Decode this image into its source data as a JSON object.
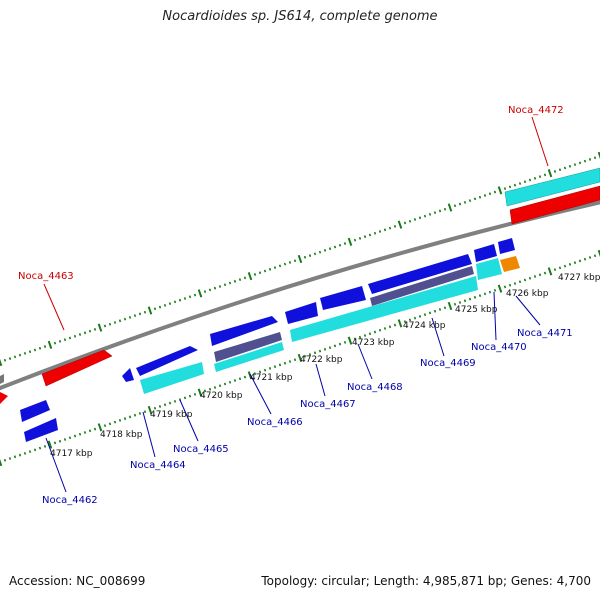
{
  "title": "Nocardioides sp. JS614, complete genome",
  "footer": {
    "accession": "Accession: NC_008699",
    "summary": "Topology: circular; Length: 4,985,871 bp; Genes: 4,700"
  },
  "colors": {
    "backbone": "#808080",
    "tick_green": "#1a7a1a",
    "gene_blue": "#1010dd",
    "gene_cyan": "#22dddd",
    "gene_red": "#ee0000",
    "gene_slate": "#505090",
    "gene_orange": "#ee8800",
    "label_red": "#cc0000",
    "label_blue": "#0000aa"
  },
  "scale_labels": [
    "4717 kbp",
    "4718 kbp",
    "4719 kbp",
    "4720 kbp",
    "4721 kbp",
    "4722 kbp",
    "4723 kbp",
    "4724 kbp",
    "4725 kbp",
    "4726 kbp",
    "4727 kbp"
  ],
  "gene_labels": [
    {
      "text": "Noca_4472",
      "color": "red"
    },
    {
      "text": "Noca_4463",
      "color": "red"
    },
    {
      "text": "Noca_4462",
      "color": "blue"
    },
    {
      "text": "Noca_4464",
      "color": "blue"
    },
    {
      "text": "Noca_4465",
      "color": "blue"
    },
    {
      "text": "Noca_4466",
      "color": "blue"
    },
    {
      "text": "Noca_4467",
      "color": "blue"
    },
    {
      "text": "Noca_4468",
      "color": "blue"
    },
    {
      "text": "Noca_4469",
      "color": "blue"
    },
    {
      "text": "Noca_4470",
      "color": "blue"
    },
    {
      "text": "Noca_4471",
      "color": "blue"
    }
  ]
}
